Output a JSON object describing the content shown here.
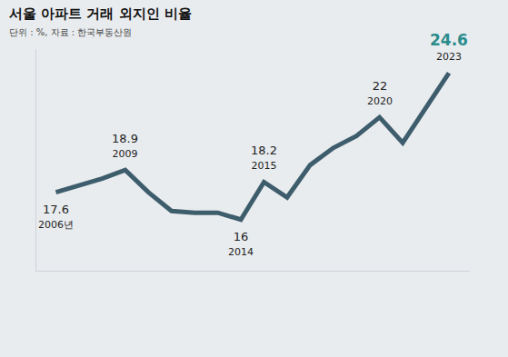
{
  "chart_data": {
    "type": "line",
    "title": "서울 아파트 거래 외지인 비율",
    "subtitle": "단위 : %, 자료 : 한국부동산원",
    "categories": [
      "2006년",
      null,
      null,
      "2009",
      null,
      null,
      null,
      null,
      "2014",
      "2015",
      null,
      null,
      null,
      null,
      "2020",
      null,
      null,
      "2023"
    ],
    "values": [
      17.6,
      18.0,
      18.4,
      18.9,
      17.6,
      16.5,
      16.4,
      16.4,
      16.0,
      18.2,
      17.3,
      19.2,
      20.2,
      20.9,
      22.0,
      20.5,
      22.6,
      24.6
    ],
    "value_labels": [
      "17.6",
      null,
      null,
      "18.9",
      null,
      null,
      null,
      null,
      "16",
      "18.2",
      null,
      null,
      null,
      null,
      "22",
      null,
      null,
      "24.6"
    ],
    "data_labels": true,
    "color": "#3e5d6c",
    "ylim": [
      13,
      26
    ],
    "grid": false,
    "tick_labels": false
  }
}
